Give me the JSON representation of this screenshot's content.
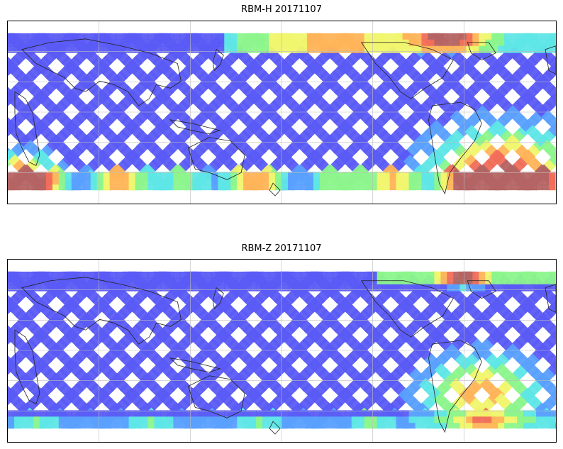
{
  "panels": [
    {
      "title": "RBM-H 20171107",
      "colormap": [
        "#5b5bf5",
        "#5aa0ff",
        "#5fe6e6",
        "#8cf58c",
        "#f0f56e",
        "#ffb45a",
        "#f06e5a",
        "#b46464"
      ],
      "intensity_profile": "high"
    },
    {
      "title": "RBM-Z 20171107",
      "colormap": [
        "#5b5bf5",
        "#5aa0ff",
        "#5fe6e6",
        "#8cf58c",
        "#f0f56e",
        "#ffb45a",
        "#f06e5a",
        "#b46464"
      ],
      "intensity_profile": "low"
    }
  ],
  "map": {
    "projection": "cylindrical",
    "central_longitude": 150,
    "gridlines": true,
    "lat_range": [
      -60,
      60
    ],
    "lon_range": [
      -30,
      330
    ]
  }
}
